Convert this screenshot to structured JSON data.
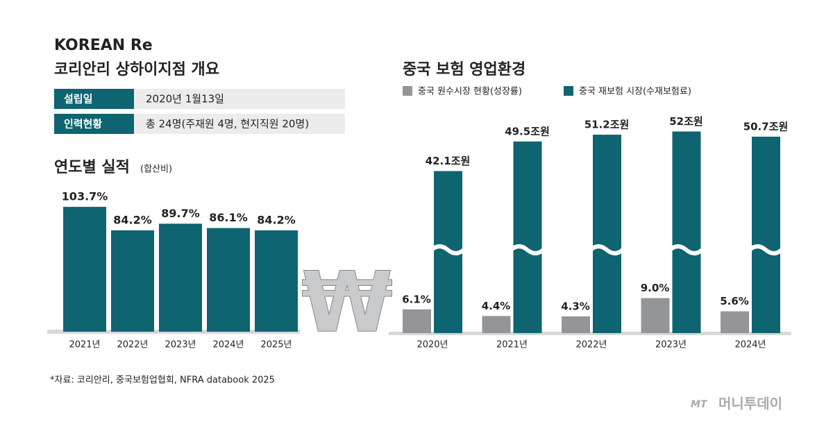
{
  "header": {
    "logo": "KOREAN Re",
    "title": "코리안리 상하이지점 개요"
  },
  "info": {
    "rows": [
      [
        "설립일",
        "2020년 1월13일"
      ],
      [
        "인력현황",
        "총 24명(주재원 4명, 현지직원 20명)"
      ]
    ]
  },
  "chart_data": [
    {
      "type": "bar",
      "title": "연도별 실적",
      "subtitle": "(합산비)",
      "categories": [
        "2021년",
        "2022년",
        "2023년",
        "2024년",
        "2025년"
      ],
      "values": [
        103.7,
        84.2,
        89.7,
        86.1,
        84.2
      ],
      "value_labels": [
        "103.7%",
        "84.2%",
        "89.7%",
        "86.1%",
        "84.2%"
      ],
      "color": "#0e6471"
    },
    {
      "type": "broken-bar",
      "title": "중국 보험 영업환경",
      "categories": [
        "2020년",
        "2021년",
        "2022년",
        "2023년",
        "2024년"
      ],
      "series": [
        {
          "name": "중국 원수시장 현황(성장률)",
          "color": "#939598",
          "values": [
            6.1,
            4.4,
            4.3,
            9.0,
            5.6
          ],
          "value_labels": [
            "6.1%",
            "4.4%",
            "4.3%",
            "9.0%",
            "5.6%"
          ]
        },
        {
          "name": "중국 재보험 시장(수재보험료)",
          "color": "#0e6471",
          "values": [
            42.1,
            49.5,
            51.2,
            52,
            50.7
          ],
          "value_labels": [
            "42.1조원",
            "49.5조원",
            "51.2조원",
            "52조원",
            "50.7조원"
          ]
        }
      ]
    }
  ],
  "symbol": "₩",
  "source": "*자료: 코리안리, 중국보험업협회, NFRA databook 2025",
  "watermark": {
    "brand": "MT",
    "name": "머니투데이"
  }
}
